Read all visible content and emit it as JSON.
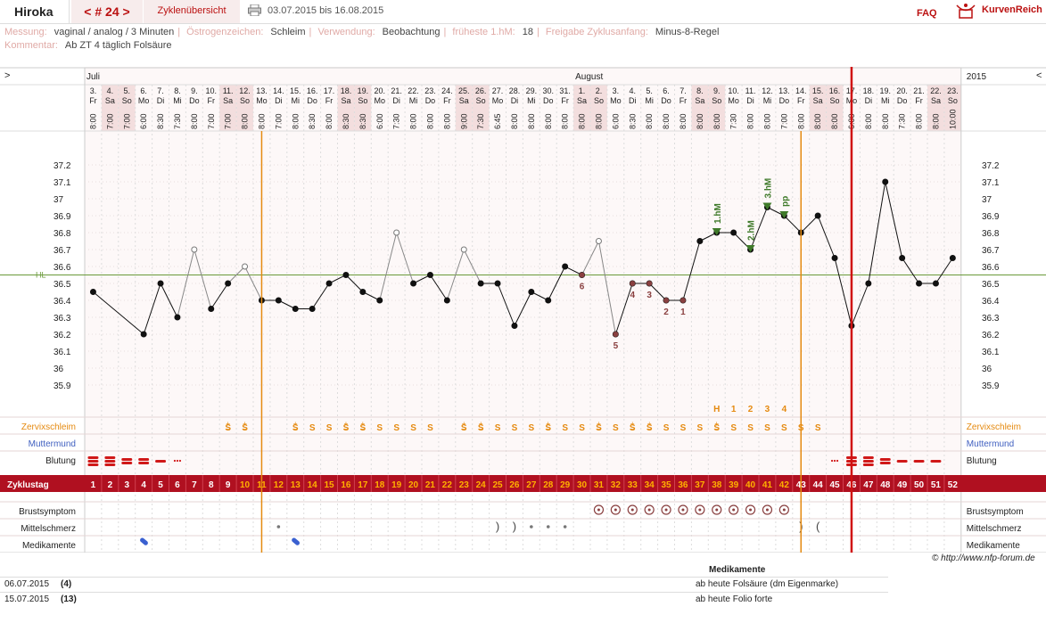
{
  "header": {
    "username": "Hiroka",
    "cycle_nav_prev": "<",
    "cycle_nav_label": "# 24",
    "cycle_nav_next": ">",
    "overview_tab": "Zyklenübersicht",
    "print_icon": "printer-icon",
    "date_range": "03.07.2015 bis 16.08.2015",
    "faq_link": "FAQ",
    "logo_icon": "kurvenreich-logo-icon",
    "brand": "KurvenReich"
  },
  "meta": {
    "messung_label": "Messung:",
    "messung_value": "vaginal / analog / 3 Minuten",
    "oestrogen_label": "Östrogenzeichen:",
    "oestrogen_value": "Schleim",
    "verwendung_label": "Verwendung:",
    "verwendung_value": "Beobachtung",
    "hm_label": "früheste 1.hM:",
    "hm_value": "18",
    "freigabe_label": "Freigabe Zyklusanfang:",
    "freigabe_value": "Minus-8-Regel",
    "kommentar_label": "Kommentar:",
    "kommentar_value": "Ab ZT 4 täglich Folsäure"
  },
  "chart_data": {
    "type": "line",
    "title": "",
    "month_labels": [
      {
        "label": "Juli",
        "day": 1
      },
      {
        "label": "August",
        "day": 30
      }
    ],
    "year_label": "2015",
    "left_arrow": ">",
    "right_arrow": "<",
    "days": [
      {
        "d": "3.",
        "w": "Fr",
        "t": "8:00"
      },
      {
        "d": "4.",
        "w": "Sa",
        "t": "7:00"
      },
      {
        "d": "5.",
        "w": "So",
        "t": "7:00"
      },
      {
        "d": "6.",
        "w": "Mo",
        "t": "6:00"
      },
      {
        "d": "7.",
        "w": "Di",
        "t": "8:30"
      },
      {
        "d": "8.",
        "w": "Mi",
        "t": "7:30"
      },
      {
        "d": "9.",
        "w": "Do",
        "t": "8:00"
      },
      {
        "d": "10.",
        "w": "Fr",
        "t": "7:00"
      },
      {
        "d": "11.",
        "w": "Sa",
        "t": "7:00"
      },
      {
        "d": "12.",
        "w": "So",
        "t": "8:00"
      },
      {
        "d": "13.",
        "w": "Mo",
        "t": "8:00"
      },
      {
        "d": "14.",
        "w": "Di",
        "t": "7:00"
      },
      {
        "d": "15.",
        "w": "Mi",
        "t": "8:00"
      },
      {
        "d": "16.",
        "w": "Do",
        "t": "8:30"
      },
      {
        "d": "17.",
        "w": "Fr",
        "t": "8:00"
      },
      {
        "d": "18.",
        "w": "Sa",
        "t": "8:30"
      },
      {
        "d": "19.",
        "w": "So",
        "t": "8:30"
      },
      {
        "d": "20.",
        "w": "Mo",
        "t": "6:00"
      },
      {
        "d": "21.",
        "w": "Di",
        "t": "7:30"
      },
      {
        "d": "22.",
        "w": "Mi",
        "t": "8:00"
      },
      {
        "d": "23.",
        "w": "Do",
        "t": "8:00"
      },
      {
        "d": "24.",
        "w": "Fr",
        "t": "8:00"
      },
      {
        "d": "25.",
        "w": "Sa",
        "t": "9:00"
      },
      {
        "d": "26.",
        "w": "So",
        "t": "7:30"
      },
      {
        "d": "27.",
        "w": "Mo",
        "t": "6:45"
      },
      {
        "d": "28.",
        "w": "Di",
        "t": "8:00"
      },
      {
        "d": "29.",
        "w": "Mi",
        "t": "8:00"
      },
      {
        "d": "30.",
        "w": "Do",
        "t": "8:00"
      },
      {
        "d": "31.",
        "w": "Fr",
        "t": "8:00"
      },
      {
        "d": "1.",
        "w": "Sa",
        "t": "8:00"
      },
      {
        "d": "2.",
        "w": "So",
        "t": "8:00"
      },
      {
        "d": "3.",
        "w": "Mo",
        "t": "6:00"
      },
      {
        "d": "4.",
        "w": "Di",
        "t": "8:30"
      },
      {
        "d": "5.",
        "w": "Mi",
        "t": "8:00"
      },
      {
        "d": "6.",
        "w": "Do",
        "t": "8:00"
      },
      {
        "d": "7.",
        "w": "Fr",
        "t": "8:00"
      },
      {
        "d": "8.",
        "w": "Sa",
        "t": "8:00"
      },
      {
        "d": "9.",
        "w": "So",
        "t": "8:00"
      },
      {
        "d": "10.",
        "w": "Mo",
        "t": "7:30"
      },
      {
        "d": "11.",
        "w": "Di",
        "t": "8:00"
      },
      {
        "d": "12.",
        "w": "Mi",
        "t": "8:00"
      },
      {
        "d": "13.",
        "w": "Do",
        "t": "7:00"
      },
      {
        "d": "14.",
        "w": "Fr",
        "t": "8:00"
      },
      {
        "d": "15.",
        "w": "Sa",
        "t": "8:00"
      },
      {
        "d": "16.",
        "w": "So",
        "t": "8:00"
      },
      {
        "d": "17.",
        "w": "Mo",
        "t": "6:00"
      },
      {
        "d": "18.",
        "w": "Di",
        "t": "8:00"
      },
      {
        "d": "19.",
        "w": "Mi",
        "t": "8:00"
      },
      {
        "d": "20.",
        "w": "Do",
        "t": "7:30"
      },
      {
        "d": "21.",
        "w": "Fr",
        "t": "8:00"
      },
      {
        "d": "22.",
        "w": "Sa",
        "t": "8:00"
      },
      {
        "d": "23.",
        "w": "So",
        "t": "10:00"
      }
    ],
    "temperatures": [
      36.45,
      null,
      null,
      36.2,
      36.5,
      36.3,
      36.7,
      36.35,
      36.5,
      36.6,
      36.4,
      36.4,
      36.35,
      36.35,
      36.5,
      36.55,
      36.45,
      36.4,
      36.8,
      36.5,
      36.55,
      36.4,
      36.7,
      36.5,
      36.5,
      36.25,
      36.45,
      36.4,
      36.6,
      36.55,
      36.75,
      36.2,
      36.5,
      36.5,
      36.4,
      36.4,
      36.75,
      36.8,
      36.8,
      36.7,
      36.95,
      36.9,
      36.8,
      36.9,
      36.65,
      36.25,
      36.5,
      37.1,
      36.65,
      36.5,
      36.5,
      36.65
    ],
    "excluded_days": [
      7,
      10,
      19,
      23,
      31
    ],
    "coverline": 36.55,
    "coverline_label": "HL",
    "ylim": [
      35.8,
      37.3
    ],
    "y_ticks": [
      37.2,
      37.1,
      37.0,
      36.9,
      36.8,
      36.7,
      36.6,
      36.5,
      36.4,
      36.3,
      36.2,
      36.1,
      36.0,
      35.9
    ],
    "y_tick_labels": [
      "37.2",
      "37.1",
      "37",
      "36.9",
      "36.8",
      "36.7",
      "36.6",
      "36.5",
      "36.4",
      "36.3",
      "36.2",
      "36.1",
      "36",
      "35.9"
    ],
    "day_markers": [
      {
        "day": 30,
        "label": "6"
      },
      {
        "day": 32,
        "label": "5"
      },
      {
        "day": 33,
        "label": "4"
      },
      {
        "day": 34,
        "label": "3"
      },
      {
        "day": 35,
        "label": "2"
      },
      {
        "day": 36,
        "label": "1"
      }
    ],
    "hm_markers": [
      {
        "day": 38,
        "label": "1.hM"
      },
      {
        "day": 40,
        "label": "2.hM"
      },
      {
        "day": 41,
        "label": "3.hM"
      },
      {
        "day": 42,
        "label": "pp"
      }
    ],
    "high_row": [
      {
        "day": 38,
        "label": "H"
      },
      {
        "day": 39,
        "label": "1"
      },
      {
        "day": 40,
        "label": "2"
      },
      {
        "day": 41,
        "label": "3"
      },
      {
        "day": 42,
        "label": "4"
      }
    ],
    "cervix_label": "Zervixschleim",
    "cervix": {
      "9": "S+",
      "10": "S+",
      "13": "S+",
      "14": "S",
      "15": "S",
      "16": "S+",
      "17": "S+",
      "18": "S",
      "19": "S",
      "20": "S",
      "21": "S",
      "23": "S+",
      "24": "S+",
      "25": "S",
      "26": "S",
      "27": "S",
      "28": "S+",
      "29": "S",
      "30": "S",
      "31": "S+",
      "32": "S",
      "33": "S+",
      "34": "S+",
      "35": "S",
      "36": "S",
      "37": "S",
      "38": "S+",
      "39": "S",
      "40": "S",
      "41": "S",
      "42": "S",
      "43": "S",
      "44": "S"
    },
    "muttermund_label": "Muttermund",
    "blutung_label": "Blutung",
    "bleeding": {
      "1": "heavy",
      "2": "heavy",
      "3": "medium",
      "4": "medium",
      "5": "light",
      "6": "spotting",
      "45": "spotting",
      "46": "heavy",
      "47": "heavy",
      "48": "medium",
      "49": "light",
      "50": "light",
      "51": "light"
    },
    "zyklustag_label": "Zyklustag",
    "cycle_days": [
      1,
      2,
      3,
      4,
      5,
      6,
      7,
      8,
      9,
      10,
      11,
      12,
      13,
      14,
      15,
      16,
      17,
      18,
      19,
      20,
      21,
      22,
      23,
      24,
      25,
      26,
      27,
      28,
      29,
      30,
      31,
      32,
      33,
      34,
      35,
      36,
      37,
      38,
      39,
      40,
      41,
      42,
      43,
      44,
      45,
      46,
      47,
      48,
      49,
      50,
      51,
      52
    ],
    "brust_label": "Brustsymptom",
    "brust_days": [
      31,
      32,
      33,
      34,
      35,
      36,
      37,
      38,
      39,
      40,
      41,
      42
    ],
    "mittel_label": "Mittelschmerz",
    "mittel": {
      "12": "dot",
      "25": "paren-right",
      "26": "paren-right",
      "27": "dot",
      "28": "dot",
      "29": "dot",
      "43": "paren-right",
      "44": "paren-left"
    },
    "med_label": "Medikamente",
    "med_days": [
      4,
      13
    ],
    "ovulation_lines": [
      10.5,
      42.5
    ],
    "new_cycle_line": 45.5
  },
  "footer": {
    "copyright": "© http://www.nfp-forum.de",
    "med_header": "Medikamente",
    "med_rows": [
      {
        "date": "06.07.2015",
        "day": "(4)",
        "text": "ab heute Folsäure (dm Eigenmarke)"
      },
      {
        "date": "15.07.2015",
        "day": "(13)",
        "text": "ab heute Folio forte"
      }
    ]
  },
  "colors": {
    "accent": "#b01020",
    "temp_line": "#111",
    "excluded_line": "#888",
    "coverline": "#6a9a3a",
    "hm": "#3f7a2a",
    "orange": "#e58a10",
    "blue": "#4060c0",
    "bleed": "#d01818",
    "marker": "#8a4040"
  }
}
